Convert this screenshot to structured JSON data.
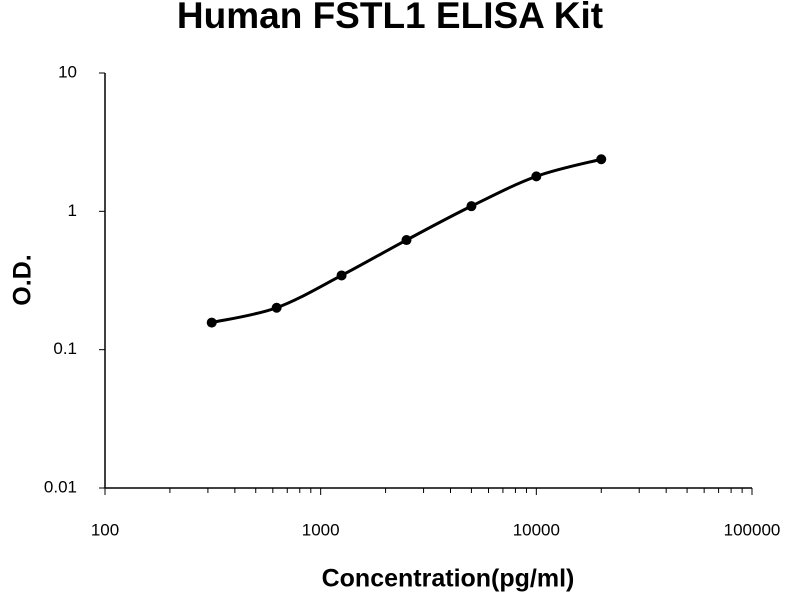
{
  "chart_data": {
    "type": "scatter",
    "title": "Human FSTL1 ELISA Kit",
    "x_label": "Concentration(pg/ml)",
    "y_label": "O.D.",
    "x_scale": "log",
    "y_scale": "log",
    "xlim": [
      100,
      100000
    ],
    "xticks": [
      100,
      1000,
      10000,
      100000
    ],
    "ylim": [
      0.01,
      10
    ],
    "yticks": [
      0.01,
      0.1,
      1,
      10
    ],
    "series": [
      {
        "color": "#000000",
        "x": [
          312.5,
          625,
          1250,
          2500,
          5000,
          10000,
          20000
        ],
        "values": [
          0.157,
          0.201,
          0.344,
          0.62,
          1.09,
          1.79,
          2.38
        ]
      }
    ]
  }
}
